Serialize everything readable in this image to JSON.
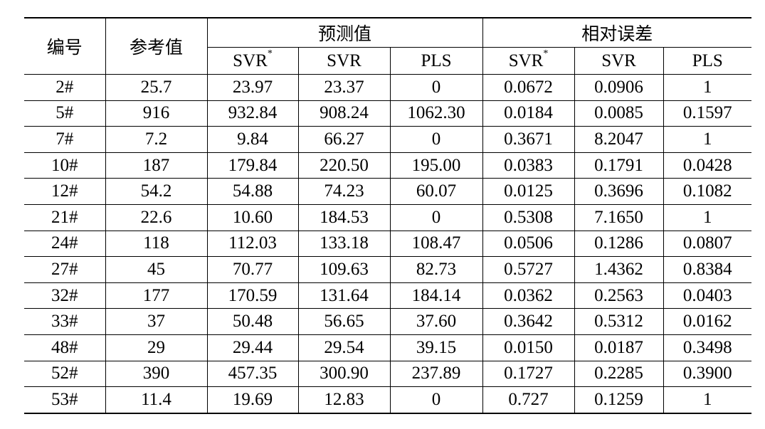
{
  "header": {
    "col_id": "编号",
    "col_ref": "参考值",
    "group_pred": "预测值",
    "group_err": "相对误差",
    "sub": {
      "svr_star_base": "SVR",
      "svr_star_mark": "*",
      "svr": "SVR",
      "pls": "PLS"
    }
  },
  "rows": [
    {
      "id": "2#",
      "ref": "25.7",
      "p_svr_star": "23.97",
      "p_svr": "23.37",
      "p_pls": "0",
      "e_svr_star": "0.0672",
      "e_svr": "0.0906",
      "e_pls": "1"
    },
    {
      "id": "5#",
      "ref": "916",
      "p_svr_star": "932.84",
      "p_svr": "908.24",
      "p_pls": "1062.30",
      "e_svr_star": "0.0184",
      "e_svr": "0.0085",
      "e_pls": "0.1597"
    },
    {
      "id": "7#",
      "ref": "7.2",
      "p_svr_star": "9.84",
      "p_svr": "66.27",
      "p_pls": "0",
      "e_svr_star": "0.3671",
      "e_svr": "8.2047",
      "e_pls": "1"
    },
    {
      "id": "10#",
      "ref": "187",
      "p_svr_star": "179.84",
      "p_svr": "220.50",
      "p_pls": "195.00",
      "e_svr_star": "0.0383",
      "e_svr": "0.1791",
      "e_pls": "0.0428"
    },
    {
      "id": "12#",
      "ref": "54.2",
      "p_svr_star": "54.88",
      "p_svr": "74.23",
      "p_pls": "60.07",
      "e_svr_star": "0.0125",
      "e_svr": "0.3696",
      "e_pls": "0.1082"
    },
    {
      "id": "21#",
      "ref": "22.6",
      "p_svr_star": "10.60",
      "p_svr": "184.53",
      "p_pls": "0",
      "e_svr_star": "0.5308",
      "e_svr": "7.1650",
      "e_pls": "1"
    },
    {
      "id": "24#",
      "ref": "118",
      "p_svr_star": "112.03",
      "p_svr": "133.18",
      "p_pls": "108.47",
      "e_svr_star": "0.0506",
      "e_svr": "0.1286",
      "e_pls": "0.0807"
    },
    {
      "id": "27#",
      "ref": "45",
      "p_svr_star": "70.77",
      "p_svr": "109.63",
      "p_pls": "82.73",
      "e_svr_star": "0.5727",
      "e_svr": "1.4362",
      "e_pls": "0.8384"
    },
    {
      "id": "32#",
      "ref": "177",
      "p_svr_star": "170.59",
      "p_svr": "131.64",
      "p_pls": "184.14",
      "e_svr_star": "0.0362",
      "e_svr": "0.2563",
      "e_pls": "0.0403"
    },
    {
      "id": "33#",
      "ref": "37",
      "p_svr_star": "50.48",
      "p_svr": "56.65",
      "p_pls": "37.60",
      "e_svr_star": "0.3642",
      "e_svr": "0.5312",
      "e_pls": "0.0162"
    },
    {
      "id": "48#",
      "ref": "29",
      "p_svr_star": "29.44",
      "p_svr": "29.54",
      "p_pls": "39.15",
      "e_svr_star": "0.0150",
      "e_svr": "0.0187",
      "e_pls": "0.3498"
    },
    {
      "id": "52#",
      "ref": "390",
      "p_svr_star": "457.35",
      "p_svr": "300.90",
      "p_pls": "237.89",
      "e_svr_star": "0.1727",
      "e_svr": "0.2285",
      "e_pls": "0.3900"
    },
    {
      "id": "53#",
      "ref": "11.4",
      "p_svr_star": "19.69",
      "p_svr": "12.83",
      "p_pls": "0",
      "e_svr_star": "0.727",
      "e_svr": "0.1259",
      "e_pls": "1"
    }
  ]
}
